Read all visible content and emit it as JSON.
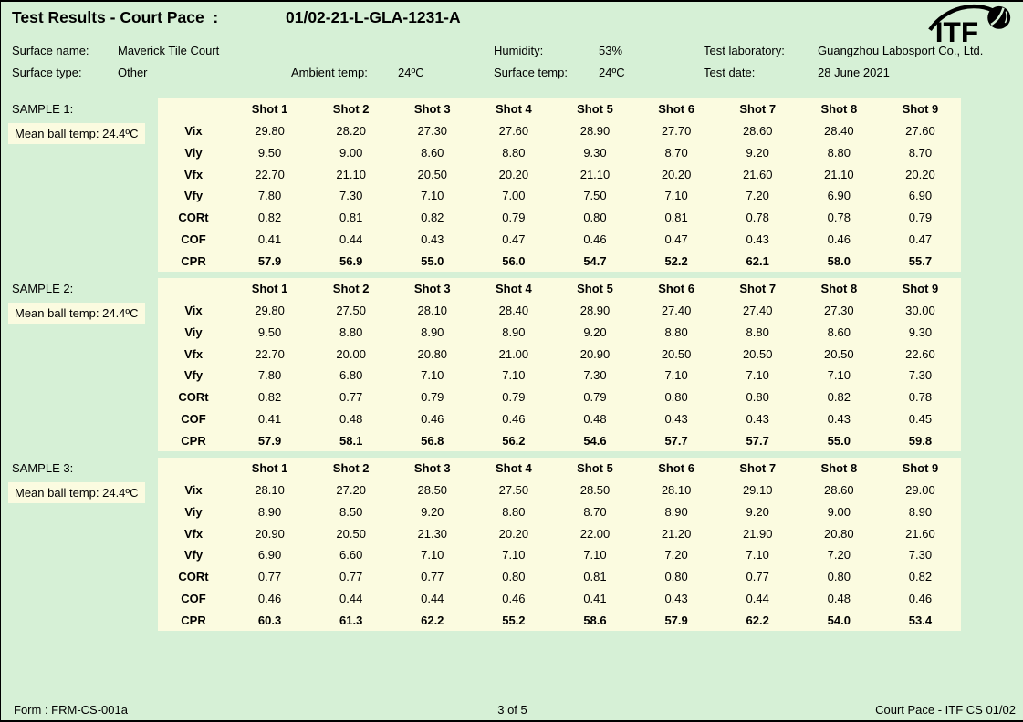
{
  "header": {
    "title": "Test Results - Court Pace  :",
    "test_code": "01/02-21-L-GLA-1231-A",
    "logo_text": "ITF"
  },
  "meta": {
    "surface_name_label": "Surface name:",
    "surface_name": "Maverick Tile Court",
    "surface_type_label": "Surface type:",
    "surface_type": "Other",
    "ambient_temp_label": "Ambient temp:",
    "ambient_temp": "24ºC",
    "humidity_label": "Humidity:",
    "humidity": "53%",
    "surface_temp_label": "Surface temp:",
    "surface_temp": "24ºC",
    "lab_label": "Test laboratory:",
    "lab_name": "Guangzhou Labosport Co., Ltd.",
    "test_date_label": "Test date:",
    "test_date": "28 June 2021"
  },
  "table": {
    "shot_headers": [
      "Shot 1",
      "Shot 2",
      "Shot 3",
      "Shot 4",
      "Shot 5",
      "Shot 6",
      "Shot 7",
      "Shot 8",
      "Shot 9"
    ]
  },
  "samples": [
    {
      "label": "SAMPLE 1:",
      "mean_ball_temp": "Mean ball temp: 24.4ºC",
      "rows": [
        {
          "label": "Vix",
          "values": [
            "29.80",
            "28.20",
            "27.30",
            "27.60",
            "28.90",
            "27.70",
            "28.60",
            "28.40",
            "27.60"
          ]
        },
        {
          "label": "Viy",
          "values": [
            "9.50",
            "9.00",
            "8.60",
            "8.80",
            "9.30",
            "8.70",
            "9.20",
            "8.80",
            "8.70"
          ]
        },
        {
          "label": "Vfx",
          "values": [
            "22.70",
            "21.10",
            "20.50",
            "20.20",
            "21.10",
            "20.20",
            "21.60",
            "21.10",
            "20.20"
          ]
        },
        {
          "label": "Vfy",
          "values": [
            "7.80",
            "7.30",
            "7.10",
            "7.00",
            "7.50",
            "7.10",
            "7.20",
            "6.90",
            "6.90"
          ]
        },
        {
          "label": "CORt",
          "values": [
            "0.82",
            "0.81",
            "0.82",
            "0.79",
            "0.80",
            "0.81",
            "0.78",
            "0.78",
            "0.79"
          ]
        },
        {
          "label": "COF",
          "values": [
            "0.41",
            "0.44",
            "0.43",
            "0.47",
            "0.46",
            "0.47",
            "0.43",
            "0.46",
            "0.47"
          ]
        },
        {
          "label": "CPR",
          "values": [
            "57.9",
            "56.9",
            "55.0",
            "56.0",
            "54.7",
            "52.2",
            "62.1",
            "58.0",
            "55.7"
          ],
          "bold": true
        }
      ]
    },
    {
      "label": "SAMPLE 2:",
      "mean_ball_temp": "Mean ball temp: 24.4ºC",
      "rows": [
        {
          "label": "Vix",
          "values": [
            "29.80",
            "27.50",
            "28.10",
            "28.40",
            "28.90",
            "27.40",
            "27.40",
            "27.30",
            "30.00"
          ]
        },
        {
          "label": "Viy",
          "values": [
            "9.50",
            "8.80",
            "8.90",
            "8.90",
            "9.20",
            "8.80",
            "8.80",
            "8.60",
            "9.30"
          ]
        },
        {
          "label": "Vfx",
          "values": [
            "22.70",
            "20.00",
            "20.80",
            "21.00",
            "20.90",
            "20.50",
            "20.50",
            "20.50",
            "22.60"
          ]
        },
        {
          "label": "Vfy",
          "values": [
            "7.80",
            "6.80",
            "7.10",
            "7.10",
            "7.30",
            "7.10",
            "7.10",
            "7.10",
            "7.30"
          ]
        },
        {
          "label": "CORt",
          "values": [
            "0.82",
            "0.77",
            "0.79",
            "0.79",
            "0.79",
            "0.80",
            "0.80",
            "0.82",
            "0.78"
          ]
        },
        {
          "label": "COF",
          "values": [
            "0.41",
            "0.48",
            "0.46",
            "0.46",
            "0.48",
            "0.43",
            "0.43",
            "0.43",
            "0.45"
          ]
        },
        {
          "label": "CPR",
          "values": [
            "57.9",
            "58.1",
            "56.8",
            "56.2",
            "54.6",
            "57.7",
            "57.7",
            "55.0",
            "59.8"
          ],
          "bold": true
        }
      ]
    },
    {
      "label": "SAMPLE 3:",
      "mean_ball_temp": "Mean ball temp: 24.4ºC",
      "rows": [
        {
          "label": "Vix",
          "values": [
            "28.10",
            "27.20",
            "28.50",
            "27.50",
            "28.50",
            "28.10",
            "29.10",
            "28.60",
            "29.00"
          ]
        },
        {
          "label": "Viy",
          "values": [
            "8.90",
            "8.50",
            "9.20",
            "8.80",
            "8.70",
            "8.90",
            "9.20",
            "9.00",
            "8.90"
          ]
        },
        {
          "label": "Vfx",
          "values": [
            "20.90",
            "20.50",
            "21.30",
            "20.20",
            "22.00",
            "21.20",
            "21.90",
            "20.80",
            "21.60"
          ]
        },
        {
          "label": "Vfy",
          "values": [
            "6.90",
            "6.60",
            "7.10",
            "7.10",
            "7.10",
            "7.20",
            "7.10",
            "7.20",
            "7.30"
          ]
        },
        {
          "label": "CORt",
          "values": [
            "0.77",
            "0.77",
            "0.77",
            "0.80",
            "0.81",
            "0.80",
            "0.77",
            "0.80",
            "0.82"
          ]
        },
        {
          "label": "COF",
          "values": [
            "0.46",
            "0.44",
            "0.44",
            "0.46",
            "0.41",
            "0.43",
            "0.44",
            "0.48",
            "0.46"
          ]
        },
        {
          "label": "CPR",
          "values": [
            "60.3",
            "61.3",
            "62.2",
            "55.2",
            "58.6",
            "57.9",
            "62.2",
            "54.0",
            "53.4"
          ],
          "bold": true
        }
      ]
    }
  ],
  "footer": {
    "form_number": "Form : FRM-CS-001a",
    "page_indicator": "3 of 5",
    "doc_reference": "Court Pace - ITF CS 01/02"
  },
  "colors": {
    "page_background": "#d6f0d6",
    "panel_background": "#fbfbe0",
    "text": "#000000"
  }
}
